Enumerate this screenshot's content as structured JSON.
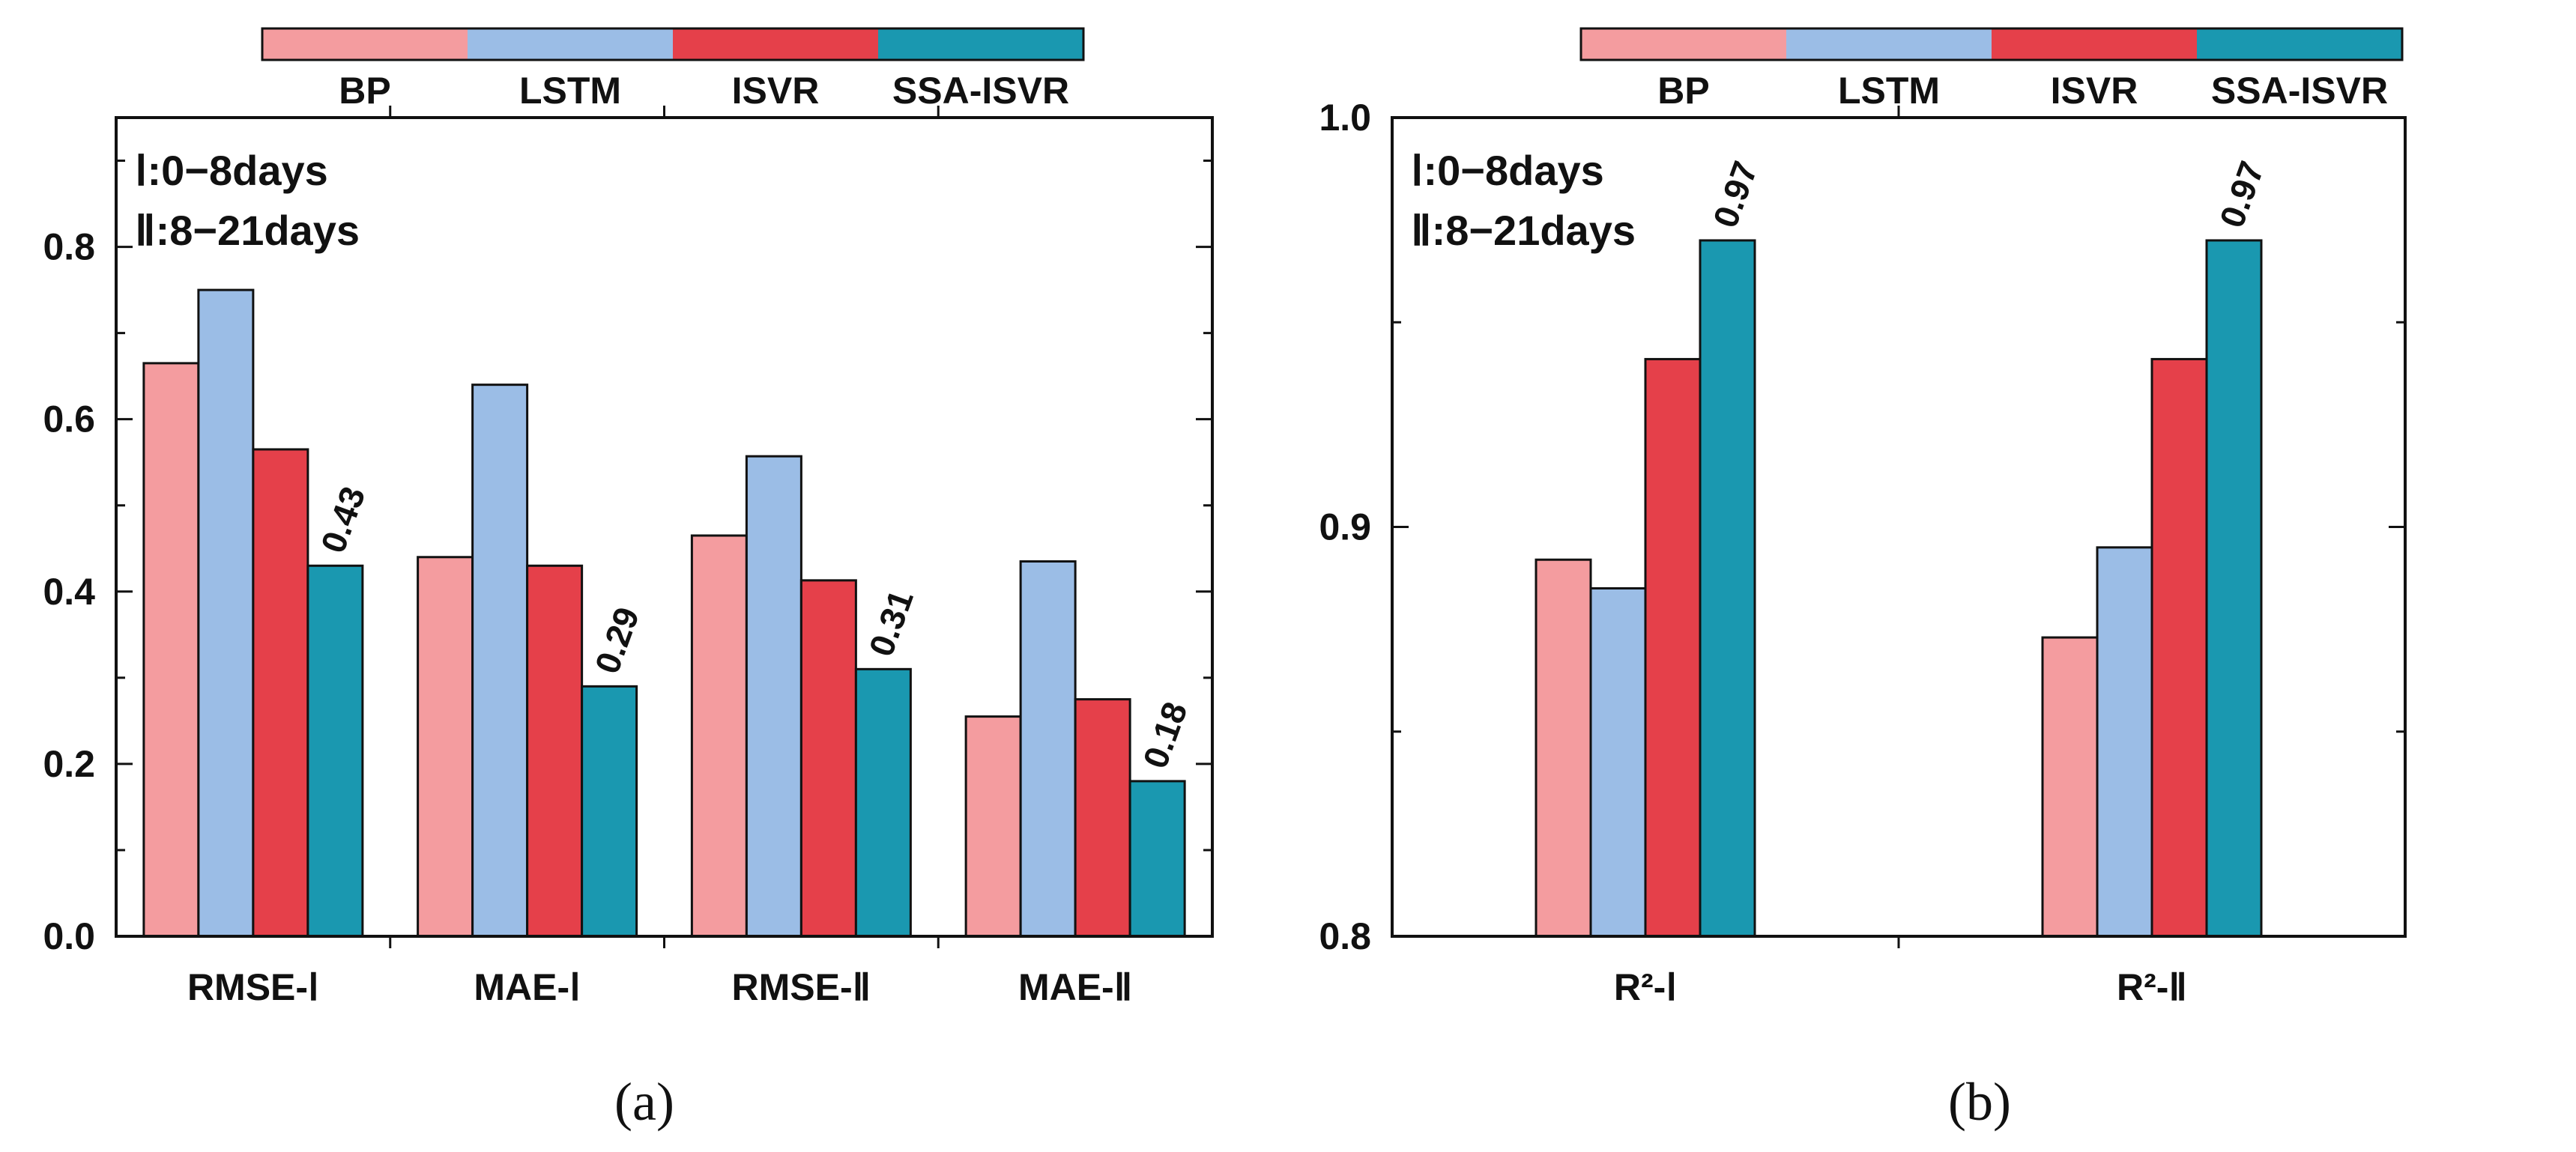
{
  "legend": {
    "items": [
      {
        "label": "BP",
        "color": "#F49C9F"
      },
      {
        "label": "LSTM",
        "color": "#9BBDE6"
      },
      {
        "label": "ISVR",
        "color": "#E5404A"
      },
      {
        "label": "SSA-ISVR",
        "color": "#1A98B0"
      }
    ]
  },
  "chart_data": [
    {
      "panel": "(a)",
      "type": "bar",
      "categories": [
        "RMSE-Ⅰ",
        "MAE-Ⅰ",
        "RMSE-Ⅱ",
        "MAE-Ⅱ"
      ],
      "series": [
        {
          "name": "BP",
          "values": [
            0.665,
            0.44,
            0.465,
            0.255
          ]
        },
        {
          "name": "LSTM",
          "values": [
            0.75,
            0.64,
            0.557,
            0.435
          ]
        },
        {
          "name": "ISVR",
          "values": [
            0.565,
            0.43,
            0.413,
            0.275
          ]
        },
        {
          "name": "SSA-ISVR",
          "values": [
            0.43,
            0.29,
            0.31,
            0.18
          ]
        }
      ],
      "data_labels": [
        "0.43",
        "0.29",
        "0.31",
        "0.18"
      ],
      "ylim": [
        0,
        0.95
      ],
      "yticks": [
        "0.0",
        "0.2",
        "0.4",
        "0.6",
        "0.8"
      ],
      "annotation": [
        "Ⅰ:0−8days",
        "Ⅱ:8−21days"
      ],
      "legend_position": "top",
      "grid": false
    },
    {
      "panel": "(b)",
      "type": "bar",
      "categories": [
        "R²-Ⅰ",
        "R²-Ⅱ"
      ],
      "series": [
        {
          "name": "BP",
          "values": [
            0.892,
            0.873
          ]
        },
        {
          "name": "LSTM",
          "values": [
            0.885,
            0.895
          ]
        },
        {
          "name": "ISVR",
          "values": [
            0.941,
            0.941
          ]
        },
        {
          "name": "SSA-ISVR",
          "values": [
            0.97,
            0.97
          ]
        }
      ],
      "data_labels": [
        "0.97",
        "0.97"
      ],
      "ylim": [
        0.8,
        1.0
      ],
      "yticks": [
        "0.8",
        "0.9",
        "1.0"
      ],
      "annotation": [
        "Ⅰ:0−8days",
        "Ⅱ:8−21days"
      ],
      "legend_position": "top",
      "grid": false
    }
  ]
}
